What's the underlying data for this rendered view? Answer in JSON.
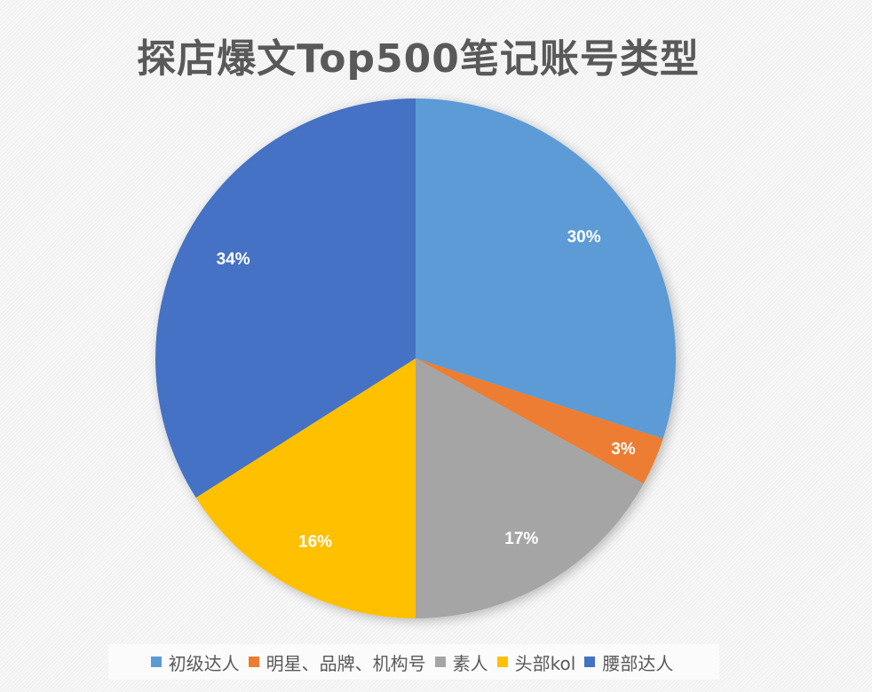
{
  "chart_data": {
    "type": "pie",
    "title": "探店爆文Top500笔记账号类型",
    "start_angle_deg": 0,
    "direction": "clockwise",
    "categories": [
      "初级达人",
      "明星、品牌、机构号",
      "素人",
      "头部kol",
      "腰部达人"
    ],
    "values": [
      30,
      3,
      17,
      16,
      34
    ],
    "labels": [
      "30%",
      "3%",
      "17%",
      "16%",
      "34%"
    ],
    "colors": [
      "#5B9BD5",
      "#ED7D31",
      "#A5A5A5",
      "#FFC000",
      "#4472C4"
    ],
    "legend_position": "bottom",
    "data_labels": true
  },
  "legend": {
    "items": [
      {
        "label": "初级达人",
        "color": "#5B9BD5"
      },
      {
        "label": "明星、品牌、机构号",
        "color": "#ED7D31"
      },
      {
        "label": "素人",
        "color": "#A5A5A5"
      },
      {
        "label": "头部kol",
        "color": "#FFC000"
      },
      {
        "label": "腰部达人",
        "color": "#4472C4"
      }
    ]
  }
}
